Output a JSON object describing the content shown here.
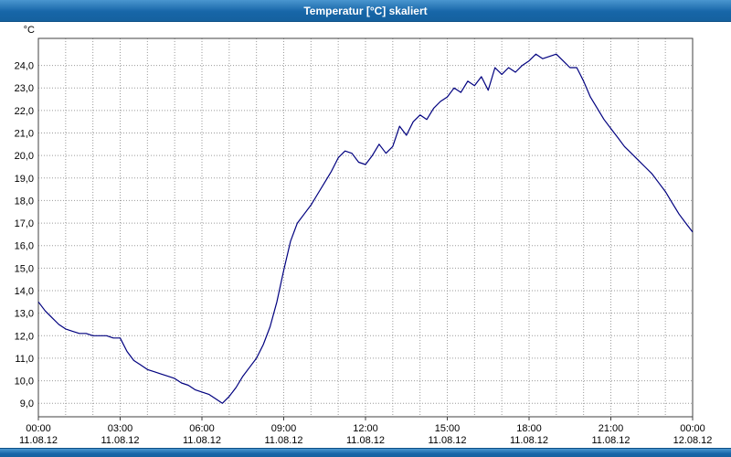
{
  "window": {
    "title": "Temperatur [°C] skaliert"
  },
  "chart_data": {
    "type": "line",
    "title": "Temperatur [°C] skaliert",
    "unit_label": "°C",
    "series_name": "Temperatur",
    "series_color": "#00007f",
    "grid_color": "#9a9a9a",
    "border_color": "#404040",
    "x_hours": 24,
    "sample_interval_hours": 0.25,
    "x_tick_hours": [
      0,
      3,
      6,
      9,
      12,
      15,
      18,
      21,
      24
    ],
    "x_tick_labels": [
      "00:00",
      "03:00",
      "06:00",
      "09:00",
      "12:00",
      "15:00",
      "18:00",
      "21:00",
      "00:00"
    ],
    "x_date_labels": [
      "11.08.12",
      "11.08.12",
      "11.08.12",
      "11.08.12",
      "11.08.12",
      "11.08.12",
      "11.08.12",
      "11.08.12",
      "12.08.12"
    ],
    "y_tick_values": [
      9,
      10,
      11,
      12,
      13,
      14,
      15,
      16,
      17,
      18,
      19,
      20,
      21,
      22,
      23,
      24
    ],
    "y_tick_labels": [
      "9,0",
      "10,0",
      "11,0",
      "12,0",
      "13,0",
      "14,0",
      "15,0",
      "16,0",
      "17,0",
      "18,0",
      "19,0",
      "20,0",
      "21,0",
      "22,0",
      "23,0",
      "24,0"
    ],
    "ylim": [
      8.4,
      25.2
    ],
    "grid": true,
    "legend": "none",
    "values_15min": [
      13.5,
      13.1,
      12.8,
      12.5,
      12.3,
      12.2,
      12.1,
      12.1,
      12.0,
      12.0,
      12.0,
      11.9,
      11.9,
      11.3,
      10.9,
      10.7,
      10.5,
      10.4,
      10.3,
      10.2,
      10.1,
      9.9,
      9.8,
      9.6,
      9.5,
      9.4,
      9.2,
      9.0,
      9.3,
      9.7,
      10.2,
      10.6,
      11.0,
      11.6,
      12.4,
      13.5,
      14.9,
      16.2,
      17.0,
      17.4,
      17.8,
      18.3,
      18.8,
      19.3,
      19.9,
      20.2,
      20.1,
      19.7,
      19.6,
      20.0,
      20.5,
      20.1,
      20.4,
      21.3,
      20.9,
      21.5,
      21.8,
      21.6,
      22.1,
      22.4,
      22.6,
      23.0,
      22.8,
      23.3,
      23.1,
      23.5,
      22.9,
      23.9,
      23.6,
      23.9,
      23.7,
      24.0,
      24.2,
      24.5,
      24.3,
      24.4,
      24.5,
      24.2,
      23.9,
      23.9,
      23.3,
      22.6,
      22.1,
      21.6,
      21.2,
      20.8,
      20.4,
      20.1,
      19.8,
      19.5,
      19.2,
      18.8,
      18.4,
      17.9,
      17.4,
      17.0,
      16.6
    ]
  }
}
